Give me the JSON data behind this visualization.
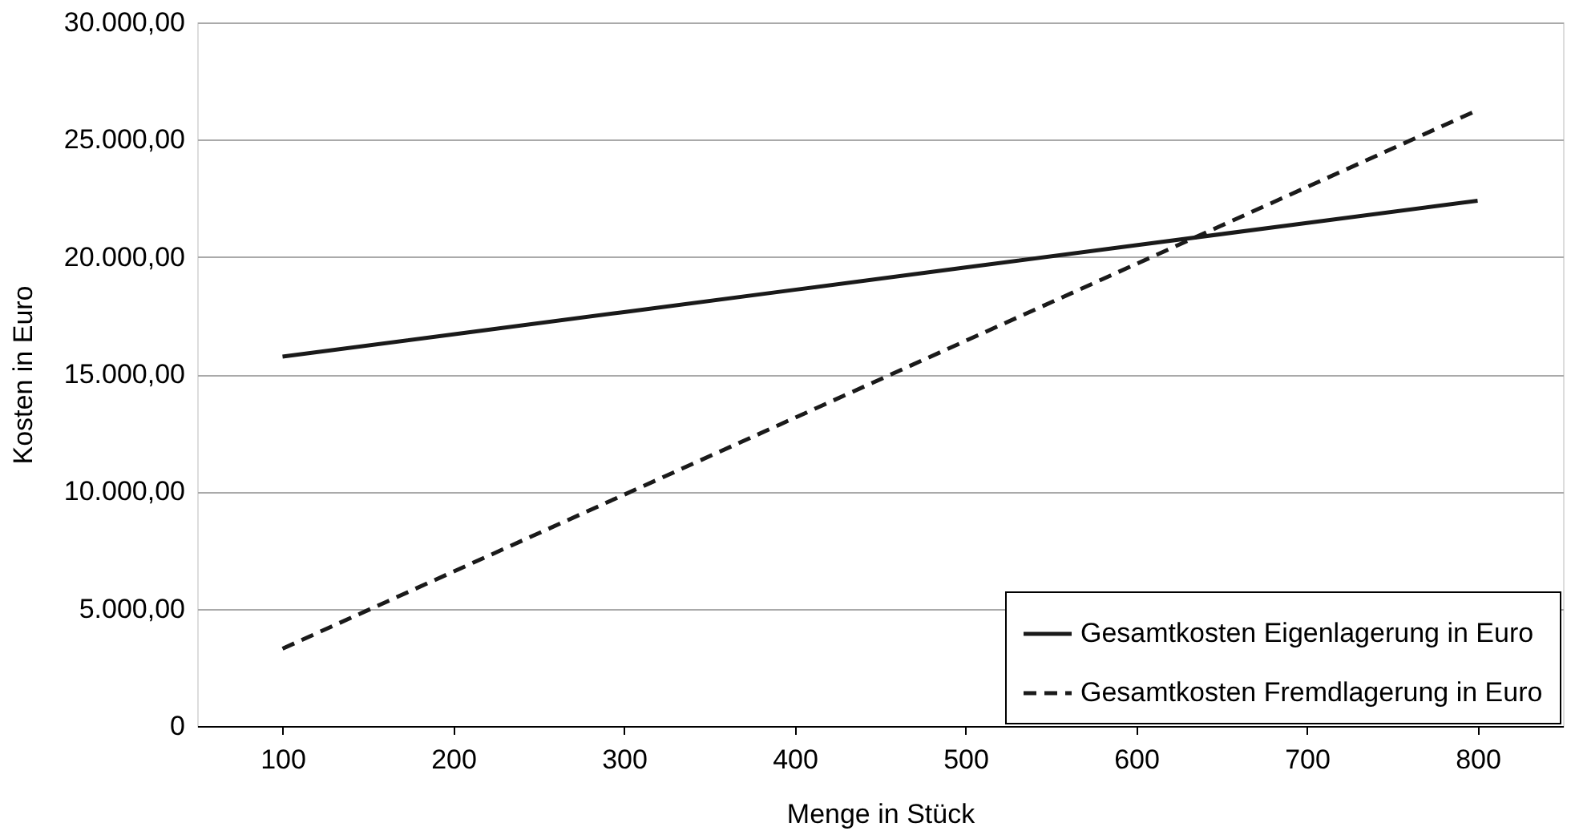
{
  "chart_data": {
    "type": "line",
    "xlabel": "Menge in Stück",
    "ylabel": "Kosten in Euro",
    "categories": [
      "100",
      "200",
      "300",
      "400",
      "500",
      "600",
      "700",
      "800"
    ],
    "series": [
      {
        "name": "Gesamtkosten Eigenlagerung in Euro",
        "color": "#1a1a1a",
        "line_style": "solid",
        "values": [
          15750,
          16700,
          17650,
          18600,
          19550,
          20500,
          21450,
          22400
        ]
      },
      {
        "name": "Gesamtkosten Fremdlagerung in Euro",
        "color": "#1a1a1a",
        "line_style": "dashed",
        "values": [
          3300,
          6580,
          9860,
          13140,
          16420,
          19700,
          22980,
          26260
        ]
      }
    ],
    "ylim": [
      0,
      30000
    ],
    "yticks": [
      0,
      {
        "value": 5000,
        "label": "5.000,00"
      },
      {
        "value": 10000,
        "label": "10.000,00"
      },
      {
        "value": 15000,
        "label": "15.000,00"
      },
      {
        "value": 20000,
        "label": "20.000,00"
      },
      {
        "value": 25000,
        "label": "25.000,00"
      },
      {
        "value": 30000,
        "label": "30.000,00"
      }
    ],
    "grid": "y",
    "legend": "bottom right",
    "marker": "none"
  }
}
